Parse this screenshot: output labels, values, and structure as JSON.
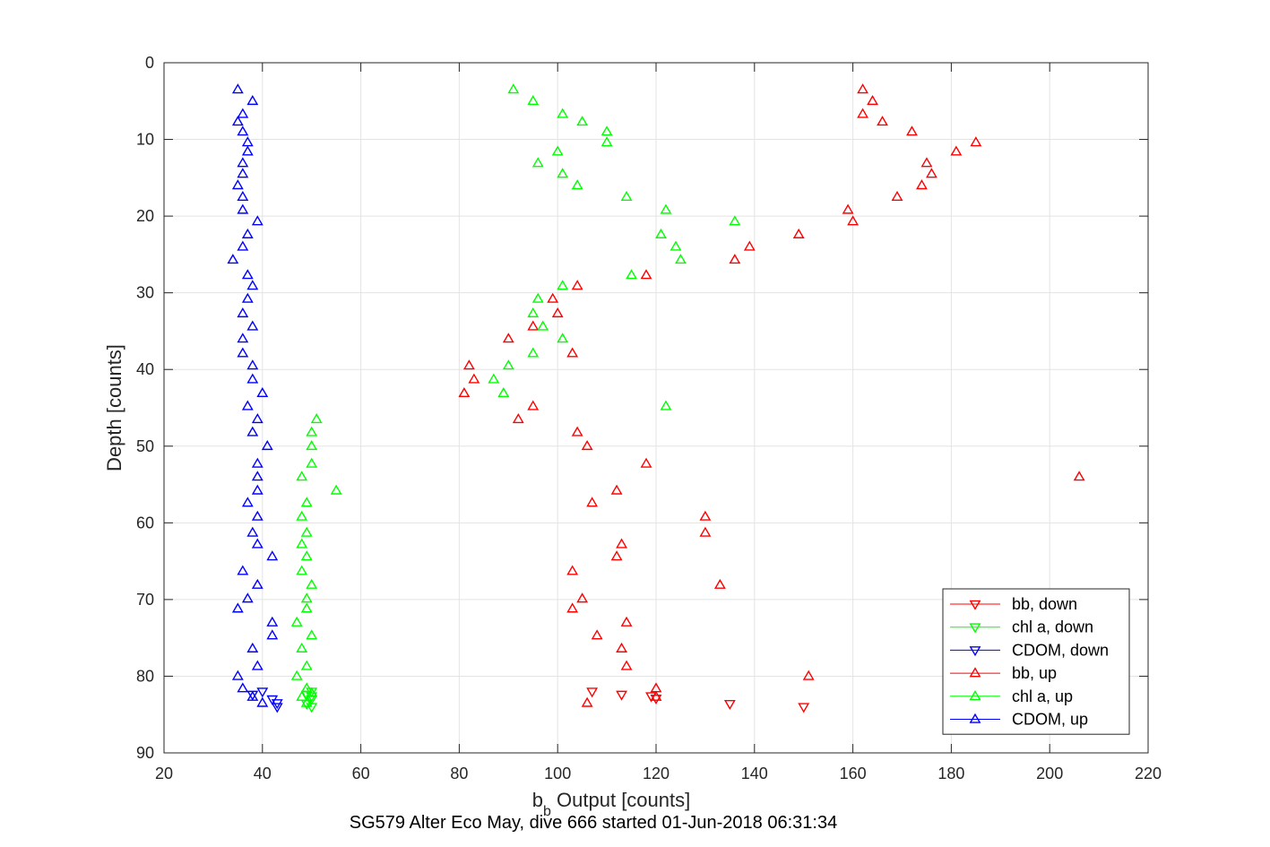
{
  "chart_data": {
    "type": "scatter",
    "xlabel": "b",
    "xlabel_sub": "b",
    "xlabel_rest": " Output [counts]",
    "ylabel": "Depth [counts]",
    "caption": "SG579 Alter Eco May, dive 666 started 01-Jun-2018 06:31:34",
    "xlim": [
      20,
      220
    ],
    "ylim": [
      0,
      90
    ],
    "y_reversed": true,
    "xticks": [
      20,
      40,
      60,
      80,
      100,
      120,
      140,
      160,
      180,
      200,
      220
    ],
    "yticks": [
      0,
      10,
      20,
      30,
      40,
      50,
      60,
      70,
      80,
      90
    ],
    "grid": true,
    "legend_position": "bottom-right",
    "series": [
      {
        "name": "bb, down",
        "color": "#ff0000",
        "marker": "triangle-down",
        "points": [
          [
            107,
            82
          ],
          [
            113,
            82.4
          ],
          [
            119,
            82.6
          ],
          [
            120,
            82.9
          ],
          [
            135,
            83.6
          ],
          [
            150,
            84
          ]
        ]
      },
      {
        "name": "chl a, down",
        "color": "#00ff00",
        "marker": "triangle-down",
        "points": [
          [
            50,
            82
          ],
          [
            49,
            82.4
          ],
          [
            50,
            82.6
          ],
          [
            50,
            83
          ],
          [
            49,
            83.6
          ],
          [
            50,
            84
          ]
        ]
      },
      {
        "name": "CDOM, down",
        "color": "#0000ff",
        "marker": "triangle-down",
        "points": [
          [
            40,
            82
          ],
          [
            38,
            82.4
          ],
          [
            42,
            83
          ],
          [
            43,
            83.5
          ],
          [
            43,
            84
          ]
        ]
      },
      {
        "name": "bb, up",
        "color": "#ff0000",
        "marker": "triangle-up",
        "points": [
          [
            162,
            3.5
          ],
          [
            164,
            5
          ],
          [
            162,
            6.7
          ],
          [
            166,
            7.7
          ],
          [
            172,
            9
          ],
          [
            185,
            10.4
          ],
          [
            181,
            11.6
          ],
          [
            175,
            13.1
          ],
          [
            176,
            14.5
          ],
          [
            174,
            16
          ],
          [
            169,
            17.5
          ],
          [
            159,
            19.2
          ],
          [
            160,
            20.7
          ],
          [
            149,
            22.4
          ],
          [
            139,
            24
          ],
          [
            136,
            25.7
          ],
          [
            118,
            27.7
          ],
          [
            104,
            29.1
          ],
          [
            99,
            30.8
          ],
          [
            100,
            32.7
          ],
          [
            95,
            34.4
          ],
          [
            90,
            36
          ],
          [
            103,
            37.9
          ],
          [
            82,
            39.5
          ],
          [
            83,
            41.3
          ],
          [
            81,
            43.1
          ],
          [
            95,
            44.8
          ],
          [
            92,
            46.5
          ],
          [
            104,
            48.2
          ],
          [
            106,
            50
          ],
          [
            118,
            52.3
          ],
          [
            206,
            54
          ],
          [
            112,
            55.8
          ],
          [
            107,
            57.4
          ],
          [
            130,
            59.2
          ],
          [
            130,
            61.3
          ],
          [
            113,
            62.8
          ],
          [
            112,
            64.4
          ],
          [
            103,
            66.3
          ],
          [
            133,
            68.1
          ],
          [
            105,
            69.9
          ],
          [
            103,
            71.2
          ],
          [
            108,
            74.7
          ],
          [
            114,
            73
          ],
          [
            113,
            76.4
          ],
          [
            114,
            78.7
          ],
          [
            151,
            80
          ],
          [
            120,
            81.6
          ],
          [
            120,
            82.7
          ],
          [
            106,
            83.5
          ]
        ]
      },
      {
        "name": "chl a, up",
        "color": "#00ff00",
        "marker": "triangle-up",
        "points": [
          [
            91,
            3.5
          ],
          [
            95,
            5
          ],
          [
            101,
            6.7
          ],
          [
            105,
            7.7
          ],
          [
            110,
            9
          ],
          [
            110,
            10.4
          ],
          [
            100,
            11.6
          ],
          [
            96,
            13.1
          ],
          [
            101,
            14.5
          ],
          [
            104,
            16
          ],
          [
            114,
            17.5
          ],
          [
            122,
            19.2
          ],
          [
            136,
            20.7
          ],
          [
            121,
            22.4
          ],
          [
            124,
            24
          ],
          [
            125,
            25.7
          ],
          [
            115,
            27.7
          ],
          [
            101,
            29.1
          ],
          [
            96,
            30.8
          ],
          [
            95,
            32.7
          ],
          [
            97,
            34.4
          ],
          [
            101,
            36
          ],
          [
            95,
            37.9
          ],
          [
            90,
            39.5
          ],
          [
            87,
            41.3
          ],
          [
            89,
            43.1
          ],
          [
            122,
            44.8
          ],
          [
            51,
            46.5
          ],
          [
            50,
            48.2
          ],
          [
            50,
            50
          ],
          [
            50,
            52.3
          ],
          [
            48,
            54
          ],
          [
            55,
            55.8
          ],
          [
            49,
            57.4
          ],
          [
            48,
            59.2
          ],
          [
            49,
            61.3
          ],
          [
            48,
            62.8
          ],
          [
            49,
            64.4
          ],
          [
            48,
            66.3
          ],
          [
            50,
            68.1
          ],
          [
            49,
            69.9
          ],
          [
            49,
            71.2
          ],
          [
            47,
            73
          ],
          [
            50,
            74.7
          ],
          [
            48,
            76.4
          ],
          [
            49,
            78.7
          ],
          [
            47,
            80
          ],
          [
            49,
            81.6
          ],
          [
            50,
            82.2
          ],
          [
            48,
            82.7
          ],
          [
            49,
            83.5
          ]
        ]
      },
      {
        "name": "CDOM, up",
        "color": "#0000ff",
        "marker": "triangle-up",
        "points": [
          [
            35,
            3.5
          ],
          [
            38,
            5
          ],
          [
            36,
            6.7
          ],
          [
            35,
            7.7
          ],
          [
            36,
            9
          ],
          [
            37,
            10.4
          ],
          [
            37,
            11.6
          ],
          [
            36,
            13.1
          ],
          [
            36,
            14.5
          ],
          [
            35,
            16
          ],
          [
            36,
            17.5
          ],
          [
            36,
            19.2
          ],
          [
            39,
            20.7
          ],
          [
            37,
            22.4
          ],
          [
            36,
            24
          ],
          [
            34,
            25.7
          ],
          [
            37,
            27.7
          ],
          [
            38,
            29.1
          ],
          [
            37,
            30.8
          ],
          [
            36,
            32.7
          ],
          [
            38,
            34.4
          ],
          [
            36,
            36
          ],
          [
            36,
            37.9
          ],
          [
            38,
            39.5
          ],
          [
            38,
            41.3
          ],
          [
            40,
            43.1
          ],
          [
            37,
            44.8
          ],
          [
            39,
            46.5
          ],
          [
            38,
            48.2
          ],
          [
            41,
            50
          ],
          [
            39,
            52.3
          ],
          [
            39,
            54
          ],
          [
            39,
            55.8
          ],
          [
            37,
            57.4
          ],
          [
            39,
            59.2
          ],
          [
            38,
            61.3
          ],
          [
            39,
            62.8
          ],
          [
            42,
            64.4
          ],
          [
            36,
            66.3
          ],
          [
            39,
            68.1
          ],
          [
            37,
            69.9
          ],
          [
            35,
            71.2
          ],
          [
            42,
            73
          ],
          [
            42,
            74.7
          ],
          [
            38,
            76.4
          ],
          [
            39,
            78.7
          ],
          [
            35,
            80
          ],
          [
            36,
            81.6
          ],
          [
            38,
            82.7
          ],
          [
            40,
            83.5
          ]
        ]
      }
    ]
  }
}
